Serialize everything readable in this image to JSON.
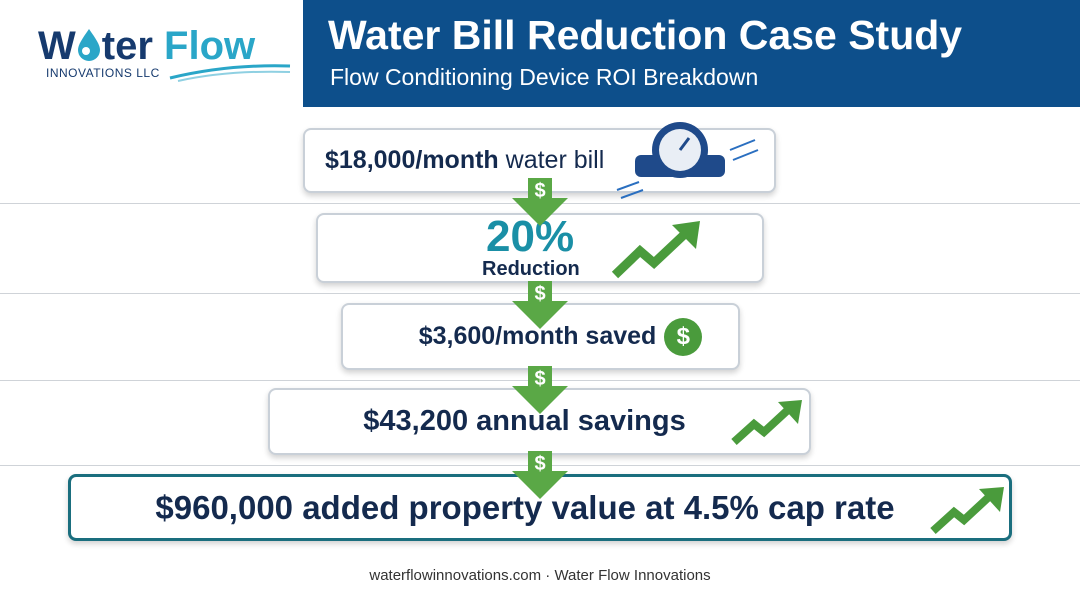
{
  "header": {
    "logo": {
      "w": "W",
      "ter": "ter",
      "flow": "Flow",
      "sub": "INNOVATIONS LLC"
    },
    "title": "Water Bill Reduction Case Study",
    "subtitle": "Flow Conditioning Device ROI Breakdown"
  },
  "steps": [
    {
      "bold": "$18,000/month",
      "rest": "water bill"
    },
    {
      "big": "20%",
      "small": "Reduction"
    },
    {
      "bold": "$3,600/month saved",
      "coin": "$"
    },
    {
      "bold": "$43,200 annual savings"
    },
    {
      "bold": "$960,000 added property value at 4.5% cap rate"
    }
  ],
  "arrows": [
    "$",
    "$",
    "$",
    "$"
  ],
  "footer": "waterflowinnovations.com · Water Flow Innovations"
}
